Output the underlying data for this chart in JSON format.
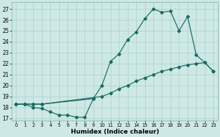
{
  "xlabel": "Humidex (Indice chaleur)",
  "xlim": [
    -0.5,
    23.5
  ],
  "ylim": [
    16.8,
    27.6
  ],
  "yticks": [
    17,
    18,
    19,
    20,
    21,
    22,
    23,
    24,
    25,
    26,
    27
  ],
  "xticks": [
    0,
    1,
    2,
    3,
    4,
    5,
    6,
    7,
    8,
    9,
    10,
    11,
    12,
    13,
    14,
    15,
    16,
    17,
    18,
    19,
    20,
    21,
    22,
    23
  ],
  "bg_color": "#cde8e5",
  "grid_color": "#aacfcc",
  "line_color": "#1a6b62",
  "line1_x": [
    0,
    1,
    2,
    3,
    4,
    5,
    6,
    7,
    8,
    9
  ],
  "line1_y": [
    18.3,
    18.3,
    18.0,
    17.9,
    17.6,
    17.3,
    17.3,
    17.1,
    17.1,
    18.8
  ],
  "line2_x": [
    0,
    1,
    2,
    3,
    9,
    10,
    11,
    12,
    13,
    14,
    15,
    16,
    17,
    18,
    19,
    20,
    21,
    22,
    23
  ],
  "line2_y": [
    18.3,
    18.3,
    18.3,
    18.3,
    18.8,
    20.0,
    22.2,
    22.9,
    24.2,
    24.9,
    26.1,
    27.0,
    26.7,
    26.8,
    25.0,
    26.3,
    22.8,
    22.1,
    21.3
  ],
  "line3_x": [
    0,
    1,
    2,
    3,
    10,
    11,
    12,
    13,
    14,
    15,
    16,
    17,
    18,
    19,
    20,
    21,
    22,
    23
  ],
  "line3_y": [
    18.3,
    18.3,
    18.3,
    18.3,
    19.0,
    19.3,
    19.7,
    20.0,
    20.4,
    20.7,
    21.0,
    21.3,
    21.5,
    21.7,
    21.9,
    22.0,
    22.1,
    21.3
  ]
}
